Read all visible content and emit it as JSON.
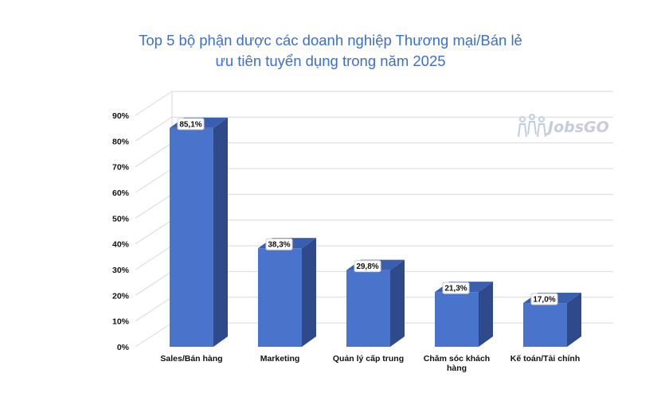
{
  "title_lines": [
    "Top 5 bộ phận dược các doanh nghiệp Thương mại/Bán lẻ",
    "ưu tiên tuyển dụng trong năm 2025"
  ],
  "watermark": "JobsGO",
  "colors": {
    "bar_front": "#4a74cc",
    "bar_side": "#2e4a8b",
    "bar_top": "#3a5fae",
    "title": "#3b6fd1",
    "grid": "#d9d9d9"
  },
  "chart_data": {
    "type": "bar",
    "title": "Top 5 bộ phận dược các doanh nghiệp Thương mại/Bán lẻ ưu tiên tuyển dụng trong năm 2025",
    "categories": [
      "Sales/Bán hàng",
      "Marketing",
      "Quản lý cấp trung",
      "Chăm sóc khách hàng",
      "Kế toán/Tài chính"
    ],
    "category_lines": [
      [
        "Sales/Bán hàng"
      ],
      [
        "Marketing"
      ],
      [
        "Quản lý cấp trung"
      ],
      [
        "Chăm sóc khách",
        "hàng"
      ],
      [
        "Kế toán/Tài chính"
      ]
    ],
    "values": [
      85.1,
      38.3,
      29.8,
      21.3,
      17.0
    ],
    "data_labels": [
      "85,1%",
      "38,3%",
      "29,8%",
      "21,3%",
      "17,0%"
    ],
    "ylim": [
      0,
      90
    ],
    "yticks": [
      "0%",
      "10%",
      "20%",
      "30%",
      "40%",
      "50%",
      "60%",
      "70%",
      "80%",
      "90%"
    ],
    "grid": true,
    "style": "3d-column",
    "legend": "none"
  }
}
